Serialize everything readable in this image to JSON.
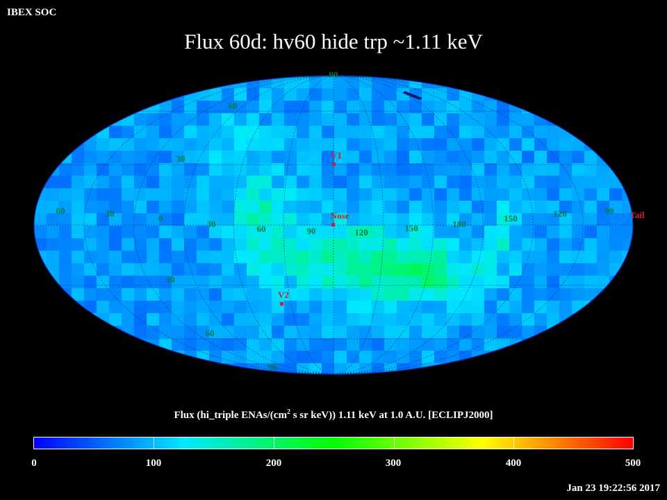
{
  "header": {
    "soc_label": "IBEX SOC",
    "title": "Flux   60d: hv60 hide trp ~1.11 keV"
  },
  "map": {
    "projection": "Mollweide",
    "grid": true,
    "lat_labels": {
      "top": "90",
      "north60": "60",
      "north30": "30",
      "south30": "30",
      "south60": "60",
      "bottom": "90"
    },
    "lon_labels": [
      "60",
      "30",
      "0",
      "30",
      "60",
      "90",
      "120",
      "150",
      "180",
      "150",
      "120",
      "90"
    ],
    "markers": {
      "v1": "V1",
      "nose": "Nose",
      "v2": "V2",
      "tail": "Tail"
    },
    "marker_color": "#cc2222",
    "grid_label_color": "#0a7a3c"
  },
  "colorbar": {
    "title_prefix": "Flux (hi_triple ENAs/(cm",
    "title_sup": "2",
    "title_suffix": " s sr keV))  1.11 keV at 1.0 A.U. [ECLIPJ2000]",
    "labels": [
      "0",
      "100",
      "200",
      "300",
      "400",
      "500"
    ],
    "min": 0,
    "max": 500,
    "colors": [
      "#0000ff",
      "#00e8ff",
      "#00ff00",
      "#ffff00",
      "#ff0000"
    ]
  },
  "footer": {
    "timestamp": "Jan 23 19:22:56 2017"
  }
}
